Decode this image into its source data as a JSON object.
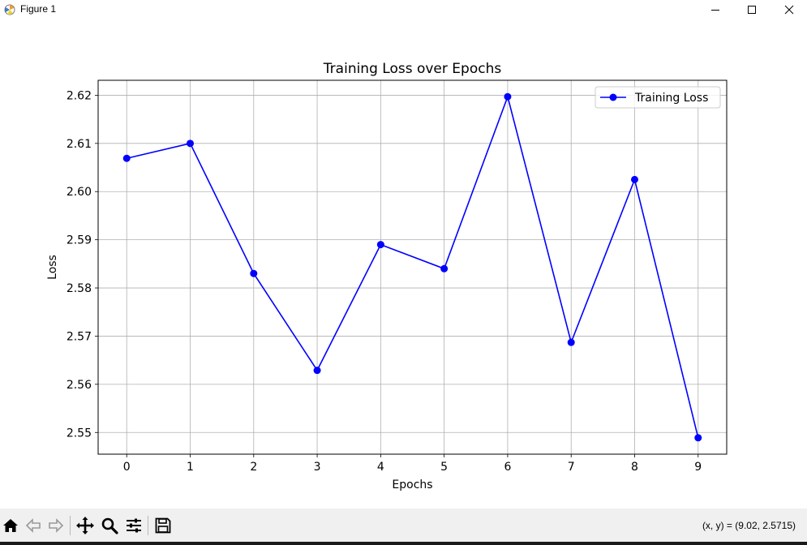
{
  "window": {
    "title": "Figure 1",
    "icon": "matplotlib-figure-icon",
    "controls": [
      "minimize-icon",
      "maximize-icon",
      "close-icon"
    ]
  },
  "toolbar": {
    "buttons": [
      "home-icon",
      "back-icon",
      "forward-icon",
      "pan-icon",
      "zoom-icon",
      "configure-subplots-icon",
      "save-icon"
    ],
    "coords_text": "(x, y) = (9.02, 2.5715)"
  },
  "chart_data": {
    "type": "line",
    "title": "Training Loss over Epochs",
    "xlabel": "Epochs",
    "ylabel": "Loss",
    "x": [
      0,
      1,
      2,
      3,
      4,
      5,
      6,
      7,
      8,
      9
    ],
    "series": [
      {
        "name": "Training Loss",
        "color": "#0000ff",
        "marker": "circle",
        "values": [
          2.6069,
          2.61,
          2.583,
          2.5629,
          2.589,
          2.584,
          2.6197,
          2.5687,
          2.6025,
          2.5489
        ]
      }
    ],
    "xticks": [
      "0",
      "1",
      "2",
      "3",
      "4",
      "5",
      "6",
      "7",
      "8",
      "9"
    ],
    "yticks": [
      "2.55",
      "2.56",
      "2.57",
      "2.58",
      "2.59",
      "2.60",
      "2.61",
      "2.62"
    ],
    "xlim": [
      -0.45,
      9.45
    ],
    "ylim": [
      2.5455,
      2.6231
    ],
    "grid": true,
    "legend_position": "top-right"
  }
}
